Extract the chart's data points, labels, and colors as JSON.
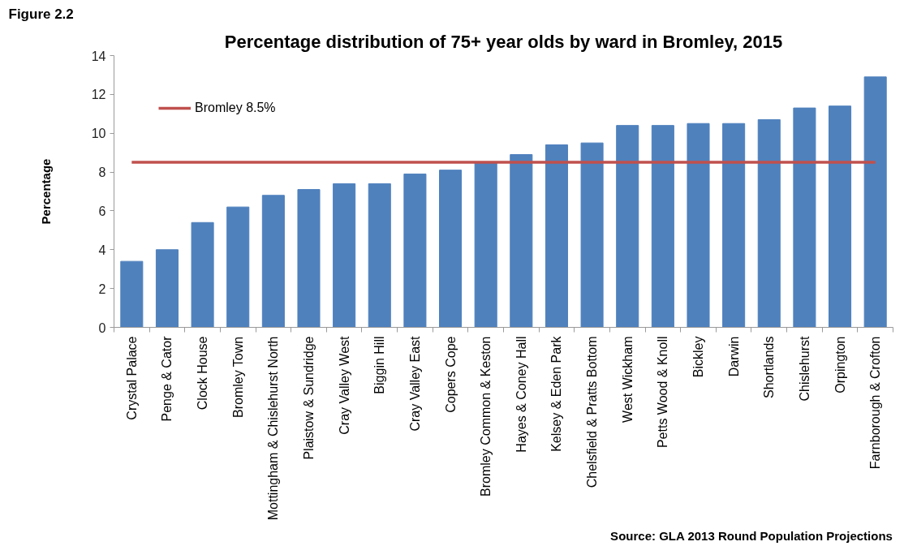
{
  "chart_data": {
    "type": "bar",
    "title": "Percentage distribution of 75+ year olds by ward in Bromley, 2015",
    "ylabel": "Percentage",
    "categories": [
      "Crystal Palace",
      "Penge & Cator",
      "Clock House",
      "Bromley Town",
      "Mottingham & Chislehurst North",
      "Plaistow & Sundridge",
      "Cray Valley West",
      "Biggin Hill",
      "Cray Valley East",
      "Copers Cope",
      "Bromley Common & Keston",
      "Hayes & Coney Hall",
      "Kelsey & Eden Park",
      "Chelsfield & Pratts Bottom",
      "West Wickham",
      "Petts Wood & Knoll",
      "Bickley",
      "Darwin",
      "Shortlands",
      "Chislehurst",
      "Orpington",
      "Farnborough & Crofton"
    ],
    "series": [
      {
        "color": "#4f81bd",
        "values": [
          3.4,
          4.0,
          5.4,
          6.2,
          6.8,
          7.1,
          7.4,
          7.4,
          7.9,
          8.1,
          8.5,
          8.9,
          9.4,
          9.5,
          10.4,
          10.4,
          10.5,
          10.5,
          10.7,
          11.3,
          11.4,
          12.9
        ]
      },
      {
        "type": "line",
        "name": "Bromley 8.5%",
        "color": "#c0504d",
        "values": [
          8.5,
          8.5,
          8.5,
          8.5,
          8.5,
          8.5,
          8.5,
          8.5,
          8.5,
          8.5,
          8.5,
          8.5,
          8.5,
          8.5,
          8.5,
          8.5,
          8.5,
          8.5,
          8.5,
          8.5,
          8.5,
          8.5
        ]
      }
    ],
    "ylim": [
      0,
      14
    ],
    "yticks": [
      0,
      2,
      4,
      6,
      8,
      10,
      12,
      14
    ],
    "legend": "top left",
    "annotations": [
      "Figure 2.2",
      "Source: GLA 2013 Round Population Projections"
    ]
  }
}
